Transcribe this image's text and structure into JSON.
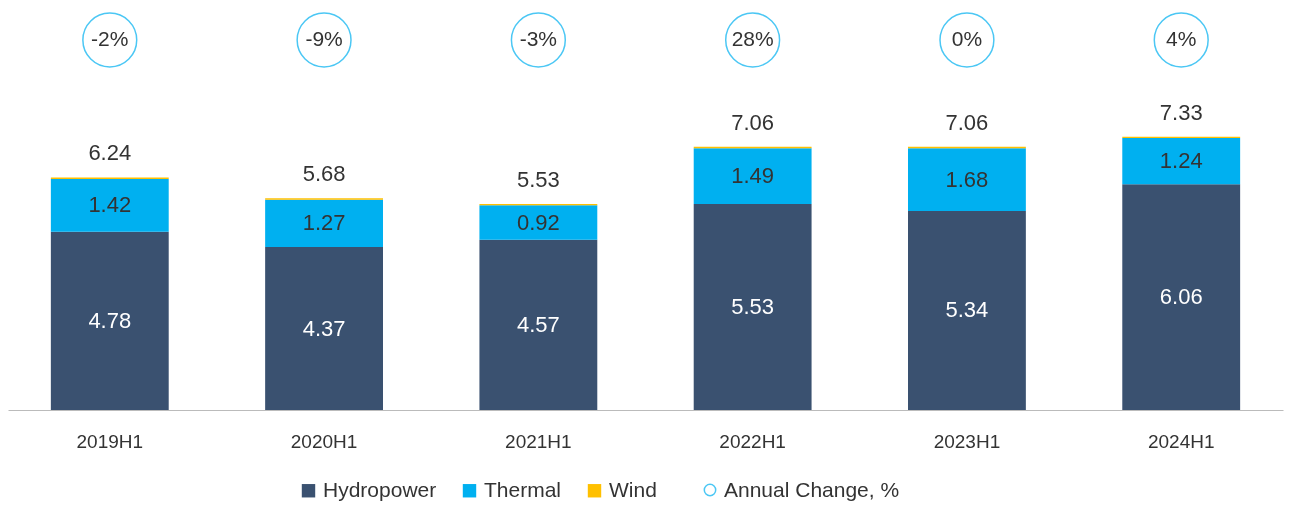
{
  "chart_data": {
    "type": "bar",
    "stacked": true,
    "categories": [
      "2019H1",
      "2020H1",
      "2021H1",
      "2022H1",
      "2023H1",
      "2024H1"
    ],
    "ylim": [
      0,
      11
    ],
    "tick_labels": "x",
    "legend": "bottom",
    "series": [
      {
        "name": "Hydropower",
        "color": "#3a5170",
        "values": [
          4.78,
          4.37,
          4.57,
          5.53,
          5.34,
          6.06
        ],
        "value_labels": [
          "4.78",
          "4.37",
          "4.57",
          "5.53",
          "5.34",
          "6.06"
        ]
      },
      {
        "name": "Thermal",
        "color": "#00b0f0",
        "values": [
          1.42,
          1.27,
          0.92,
          1.49,
          1.68,
          1.24
        ],
        "value_labels": [
          "1.42",
          "1.27",
          "0.92",
          "1.49",
          "1.68",
          "1.24"
        ]
      },
      {
        "name": "Wind",
        "color": "#ffc000",
        "values": [
          0.04,
          0.04,
          0.04,
          0.04,
          0.04,
          0.03
        ]
      }
    ],
    "totals": [
      "6.24",
      "5.68",
      "5.53",
      "7.06",
      "7.06",
      "7.33"
    ],
    "annotations": [
      "Annual Change, %",
      "-2%",
      "-9%",
      "-3%",
      "28%",
      "0%",
      "4%"
    ]
  }
}
